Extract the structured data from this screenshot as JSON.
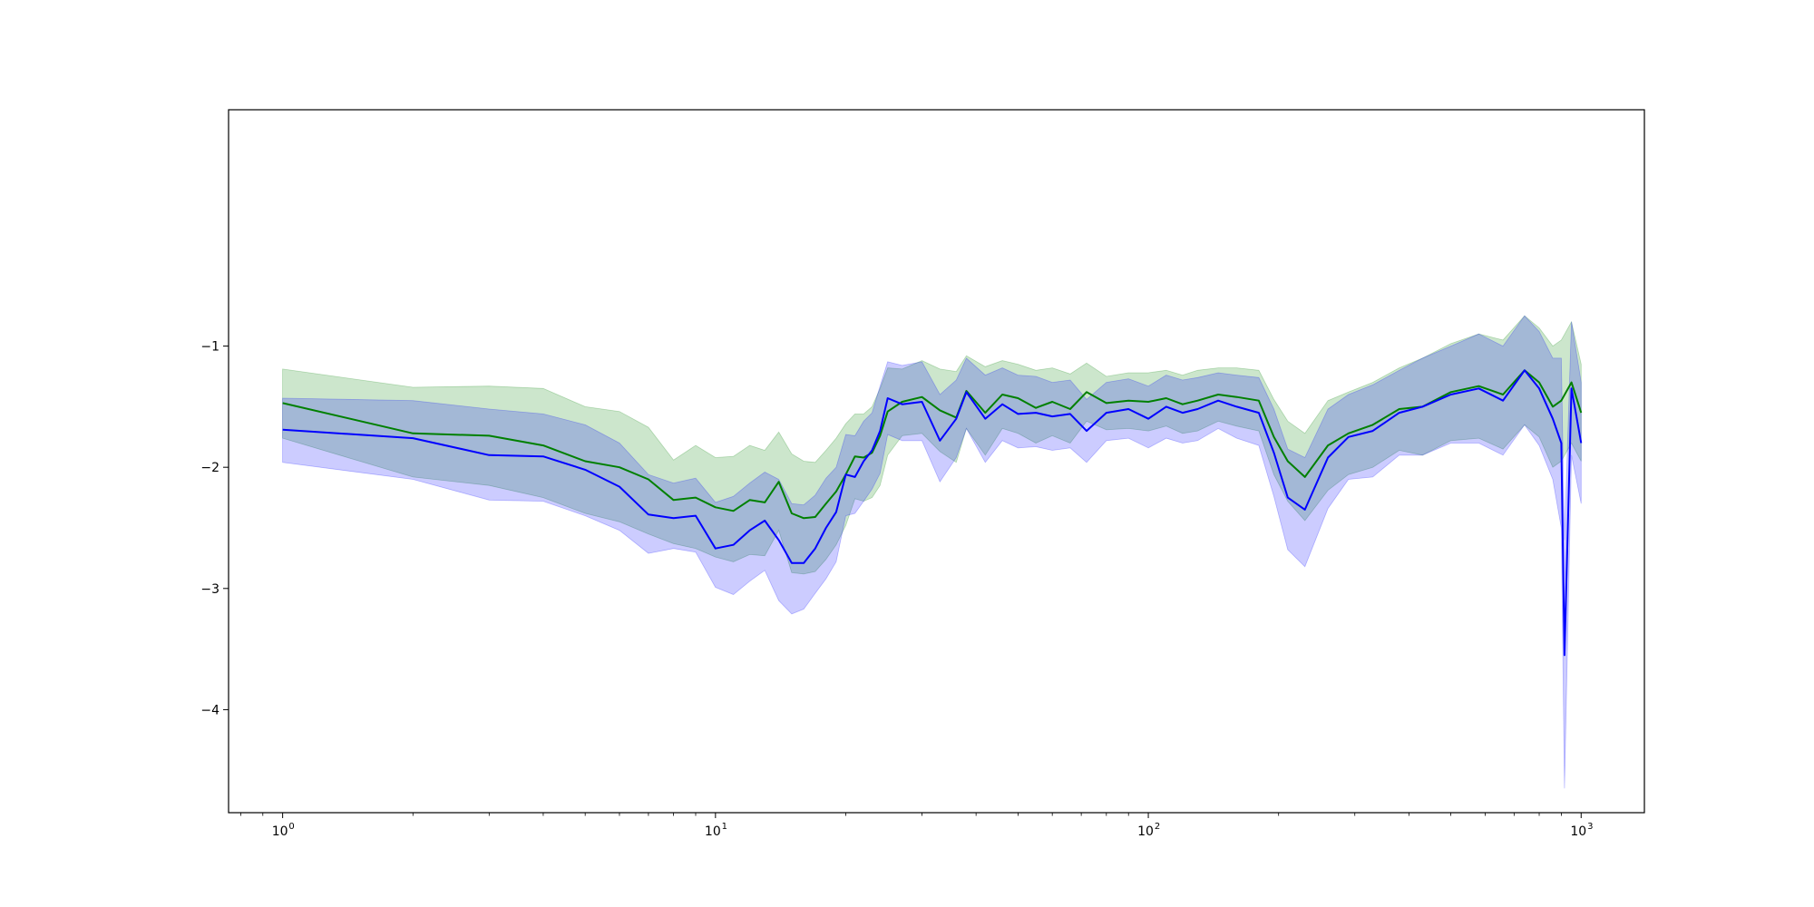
{
  "chart_data": {
    "type": "line",
    "x_scale": "log",
    "xlim": [
      0.75,
      1400
    ],
    "ylim": [
      -4.85,
      0.95
    ],
    "grid": false,
    "legend": "none",
    "x_ticks": [
      {
        "value": 1,
        "base": "10",
        "exp": "0"
      },
      {
        "value": 10,
        "base": "10",
        "exp": "1"
      },
      {
        "value": 100,
        "base": "10",
        "exp": "2"
      },
      {
        "value": 1000,
        "base": "10",
        "exp": "3"
      }
    ],
    "y_ticks": [
      {
        "value": -1,
        "label": "−1"
      },
      {
        "value": -2,
        "label": "−2"
      },
      {
        "value": -3,
        "label": "−3"
      },
      {
        "value": -4,
        "label": "−4"
      }
    ],
    "series": [
      {
        "color": "#008000",
        "band_color": "#008000",
        "band_opacity": 0.2,
        "points": [
          [
            1,
            -1.47,
            -1.19,
            -1.76
          ],
          [
            2,
            -1.72,
            -1.34,
            -2.08
          ],
          [
            3,
            -1.74,
            -1.33,
            -2.15
          ],
          [
            4,
            -1.82,
            -1.35,
            -2.25
          ],
          [
            5,
            -1.95,
            -1.5,
            -2.38
          ],
          [
            6,
            -2.0,
            -1.54,
            -2.45
          ],
          [
            7,
            -2.1,
            -1.67,
            -2.55
          ],
          [
            8,
            -2.27,
            -1.94,
            -2.63
          ],
          [
            9,
            -2.25,
            -1.82,
            -2.67
          ],
          [
            10,
            -2.33,
            -1.92,
            -2.74
          ],
          [
            11,
            -2.36,
            -1.91,
            -2.78
          ],
          [
            12,
            -2.27,
            -1.82,
            -2.72
          ],
          [
            13,
            -2.29,
            -1.86,
            -2.73
          ],
          [
            14,
            -2.12,
            -1.71,
            -2.52
          ],
          [
            15,
            -2.38,
            -1.89,
            -2.87
          ],
          [
            16,
            -2.42,
            -1.95,
            -2.88
          ],
          [
            17,
            -2.41,
            -1.96,
            -2.86
          ],
          [
            18,
            -2.3,
            -1.86,
            -2.76
          ],
          [
            19,
            -2.2,
            -1.76,
            -2.64
          ],
          [
            20,
            -2.06,
            -1.64,
            -2.48
          ],
          [
            21,
            -1.91,
            -1.56,
            -2.26
          ],
          [
            22,
            -1.92,
            -1.56,
            -2.28
          ],
          [
            23,
            -1.88,
            -1.5,
            -2.25
          ],
          [
            24,
            -1.74,
            -1.35,
            -2.15
          ],
          [
            25,
            -1.54,
            -1.18,
            -1.9
          ],
          [
            27,
            -1.46,
            -1.19,
            -1.74
          ],
          [
            30,
            -1.42,
            -1.12,
            -1.72
          ],
          [
            33,
            -1.53,
            -1.19,
            -1.87
          ],
          [
            36,
            -1.59,
            -1.21,
            -1.96
          ],
          [
            38,
            -1.37,
            -1.08,
            -1.68
          ],
          [
            42,
            -1.55,
            -1.17,
            -1.9
          ],
          [
            46,
            -1.4,
            -1.12,
            -1.68
          ],
          [
            50,
            -1.43,
            -1.15,
            -1.72
          ],
          [
            55,
            -1.51,
            -1.2,
            -1.8
          ],
          [
            60,
            -1.46,
            -1.18,
            -1.74
          ],
          [
            66,
            -1.52,
            -1.23,
            -1.8
          ],
          [
            72,
            -1.38,
            -1.14,
            -1.62
          ],
          [
            80,
            -1.47,
            -1.25,
            -1.69
          ],
          [
            90,
            -1.45,
            -1.22,
            -1.68
          ],
          [
            100,
            -1.46,
            -1.22,
            -1.7
          ],
          [
            110,
            -1.43,
            -1.2,
            -1.66
          ],
          [
            120,
            -1.48,
            -1.24,
            -1.72
          ],
          [
            130,
            -1.45,
            -1.2,
            -1.7
          ],
          [
            145,
            -1.4,
            -1.18,
            -1.62
          ],
          [
            160,
            -1.42,
            -1.18,
            -1.66
          ],
          [
            180,
            -1.45,
            -1.2,
            -1.7
          ],
          [
            195,
            -1.75,
            -1.44,
            -2.06
          ],
          [
            210,
            -1.95,
            -1.62,
            -2.28
          ],
          [
            230,
            -2.08,
            -1.72,
            -2.44
          ],
          [
            260,
            -1.82,
            -1.45,
            -2.19
          ],
          [
            290,
            -1.72,
            -1.38,
            -2.06
          ],
          [
            330,
            -1.65,
            -1.3,
            -2.0
          ],
          [
            380,
            -1.52,
            -1.18,
            -1.86
          ],
          [
            430,
            -1.5,
            -1.1,
            -1.9
          ],
          [
            500,
            -1.38,
            -0.98,
            -1.78
          ],
          [
            580,
            -1.33,
            -0.9,
            -1.76
          ],
          [
            660,
            -1.4,
            -0.95,
            -1.85
          ],
          [
            740,
            -1.2,
            -0.75,
            -1.65
          ],
          [
            800,
            -1.3,
            -0.85,
            -1.75
          ],
          [
            860,
            -1.5,
            -1.0,
            -2.0
          ],
          [
            900,
            -1.45,
            -0.95,
            -1.95
          ],
          [
            950,
            -1.3,
            -0.8,
            -1.8
          ],
          [
            1000,
            -1.55,
            -1.15,
            -1.95
          ]
        ]
      },
      {
        "color": "#0000ff",
        "band_color": "#0000ff",
        "band_opacity": 0.2,
        "points": [
          [
            1,
            -1.69,
            -1.43,
            -1.96
          ],
          [
            2,
            -1.76,
            -1.45,
            -2.1
          ],
          [
            3,
            -1.9,
            -1.52,
            -2.27
          ],
          [
            4,
            -1.91,
            -1.56,
            -2.28
          ],
          [
            5,
            -2.02,
            -1.65,
            -2.4
          ],
          [
            6,
            -2.16,
            -1.8,
            -2.52
          ],
          [
            7,
            -2.39,
            -2.06,
            -2.71
          ],
          [
            8,
            -2.42,
            -2.13,
            -2.67
          ],
          [
            9,
            -2.4,
            -2.09,
            -2.7
          ],
          [
            10,
            -2.67,
            -2.29,
            -2.99
          ],
          [
            11,
            -2.64,
            -2.24,
            -3.05
          ],
          [
            12,
            -2.52,
            -2.13,
            -2.94
          ],
          [
            13,
            -2.44,
            -2.04,
            -2.85
          ],
          [
            14,
            -2.6,
            -2.1,
            -3.1
          ],
          [
            15,
            -2.79,
            -2.3,
            -3.21
          ],
          [
            16,
            -2.79,
            -2.31,
            -3.17
          ],
          [
            17,
            -2.67,
            -2.23,
            -3.04
          ],
          [
            18,
            -2.5,
            -2.09,
            -2.92
          ],
          [
            19,
            -2.37,
            -2.0,
            -2.78
          ],
          [
            20,
            -2.06,
            -1.73,
            -2.4
          ],
          [
            21,
            -2.08,
            -1.74,
            -2.38
          ],
          [
            22,
            -1.95,
            -1.62,
            -2.28
          ],
          [
            23,
            -1.86,
            -1.55,
            -2.18
          ],
          [
            24,
            -1.7,
            -1.33,
            -2.05
          ],
          [
            25,
            -1.43,
            -1.13,
            -1.73
          ],
          [
            27,
            -1.48,
            -1.16,
            -1.78
          ],
          [
            30,
            -1.46,
            -1.13,
            -1.78
          ],
          [
            33,
            -1.78,
            -1.4,
            -2.12
          ],
          [
            36,
            -1.6,
            -1.28,
            -1.92
          ],
          [
            38,
            -1.38,
            -1.1,
            -1.68
          ],
          [
            42,
            -1.6,
            -1.24,
            -1.96
          ],
          [
            46,
            -1.48,
            -1.18,
            -1.78
          ],
          [
            50,
            -1.56,
            -1.24,
            -1.84
          ],
          [
            55,
            -1.55,
            -1.25,
            -1.83
          ],
          [
            60,
            -1.58,
            -1.3,
            -1.86
          ],
          [
            66,
            -1.56,
            -1.28,
            -1.84
          ],
          [
            72,
            -1.7,
            -1.44,
            -1.96
          ],
          [
            80,
            -1.55,
            -1.3,
            -1.78
          ],
          [
            90,
            -1.52,
            -1.27,
            -1.76
          ],
          [
            100,
            -1.6,
            -1.33,
            -1.84
          ],
          [
            110,
            -1.5,
            -1.24,
            -1.76
          ],
          [
            120,
            -1.55,
            -1.28,
            -1.8
          ],
          [
            130,
            -1.52,
            -1.26,
            -1.78
          ],
          [
            145,
            -1.45,
            -1.22,
            -1.68
          ],
          [
            160,
            -1.5,
            -1.24,
            -1.76
          ],
          [
            180,
            -1.55,
            -1.26,
            -1.82
          ],
          [
            195,
            -1.88,
            -1.52,
            -2.24
          ],
          [
            210,
            -2.25,
            -1.85,
            -2.68
          ],
          [
            230,
            -2.35,
            -1.92,
            -2.82
          ],
          [
            260,
            -1.92,
            -1.52,
            -2.34
          ],
          [
            290,
            -1.75,
            -1.4,
            -2.1
          ],
          [
            330,
            -1.7,
            -1.32,
            -2.08
          ],
          [
            380,
            -1.55,
            -1.2,
            -1.9
          ],
          [
            430,
            -1.5,
            -1.1,
            -1.9
          ],
          [
            500,
            -1.4,
            -1.0,
            -1.8
          ],
          [
            580,
            -1.35,
            -0.9,
            -1.8
          ],
          [
            660,
            -1.45,
            -1.0,
            -1.9
          ],
          [
            740,
            -1.2,
            -0.75,
            -1.65
          ],
          [
            800,
            -1.35,
            -0.88,
            -1.82
          ],
          [
            860,
            -1.6,
            -1.1,
            -2.1
          ],
          [
            900,
            -1.8,
            -1.1,
            -2.5
          ],
          [
            915,
            -3.55,
            -2.6,
            -4.65
          ],
          [
            950,
            -1.35,
            -0.8,
            -1.9
          ],
          [
            1000,
            -1.8,
            -1.3,
            -2.3
          ]
        ]
      }
    ]
  }
}
